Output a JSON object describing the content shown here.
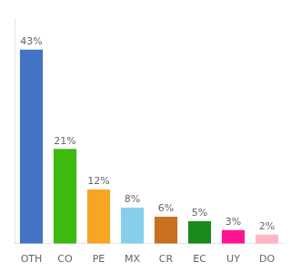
{
  "chart_data": {
    "type": "bar",
    "categories": [
      "OTH",
      "CO",
      "PE",
      "MX",
      "CR",
      "EC",
      "UY",
      "DO"
    ],
    "values": [
      43,
      21,
      12,
      8,
      6,
      5,
      3,
      2
    ],
    "value_labels": [
      "43%",
      "21%",
      "12%",
      "8%",
      "6%",
      "5%",
      "3%",
      "2%"
    ],
    "colors": [
      "#4472c4",
      "#3dba0f",
      "#f5a623",
      "#87ceeb",
      "#c87020",
      "#1a8a1a",
      "#ff1493",
      "#ffb6c1"
    ],
    "ylim": [
      0,
      50
    ],
    "grid": false,
    "data_labels": true,
    "tick_labels": "x"
  }
}
